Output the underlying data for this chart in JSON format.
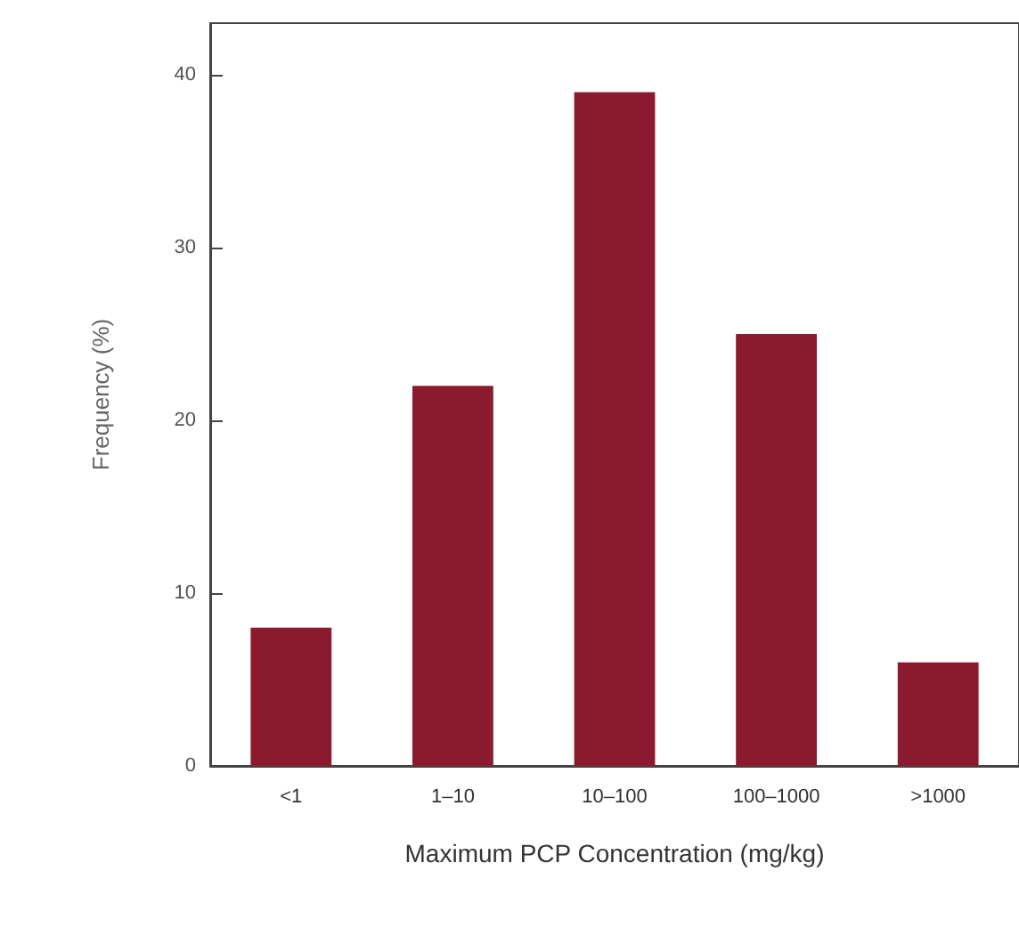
{
  "chart_data": {
    "type": "bar",
    "xlabel": "Maximum PCP Concentration (mg/kg)",
    "ylabel": "Frequency (%)",
    "categories": [
      "<1",
      "1–10",
      "10–100",
      "100–1000",
      ">1000"
    ],
    "values": [
      8,
      22,
      39,
      25,
      6
    ],
    "color": "#8b1a2e",
    "ylim": [
      0,
      43
    ],
    "yticks": [
      0,
      10,
      20,
      30,
      40
    ],
    "grid": false
  }
}
